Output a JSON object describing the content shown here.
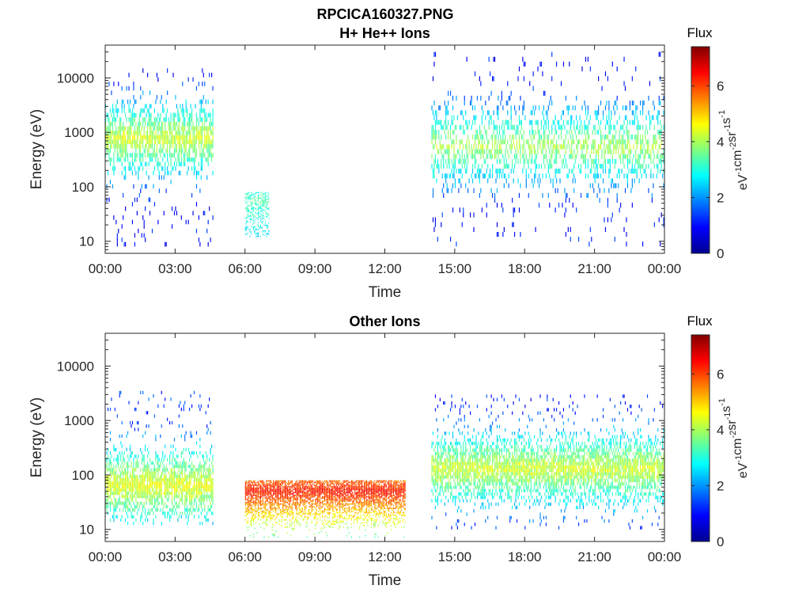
{
  "figure_title": "RPCICA160327.PNG",
  "colormap": "jet",
  "chart_data": [
    {
      "type": "heatmap",
      "title": "H+ He++ Ions",
      "xlabel": "Time",
      "ylabel": "Energy (eV)",
      "x_ticks": [
        "00:00",
        "03:00",
        "06:00",
        "09:00",
        "12:00",
        "15:00",
        "18:00",
        "21:00",
        "00:00"
      ],
      "xlim_hours": [
        0,
        24
      ],
      "y_scale": "log",
      "ylim": [
        6,
        40000
      ],
      "y_ticks": [
        10,
        100,
        1000,
        10000
      ],
      "y_tick_labels": [
        "10",
        "100",
        "1000",
        "10000"
      ],
      "colorbar": {
        "title": "Flux",
        "label": "eV-1cm-2sr-1s-1",
        "range": [
          0,
          7.4
        ],
        "ticks": [
          "0",
          "2",
          "4",
          "6"
        ]
      },
      "data_regions": [
        {
          "t_start": 0.0,
          "t_end": 4.6,
          "e_low": 8,
          "e_high": 15000,
          "flux_low": 1.5,
          "flux_high": 4.8,
          "peak_energy": 700
        },
        {
          "t_start": 6.0,
          "t_end": 7.0,
          "e_low": 12,
          "e_high": 80,
          "flux_low": 2.4,
          "flux_high": 3.8,
          "peak_energy": 50
        },
        {
          "t_start": 14.0,
          "t_end": 24.0,
          "e_low": 8,
          "e_high": 30000,
          "flux_low": 1.5,
          "flux_high": 4.5,
          "peak_energy": 500
        }
      ]
    },
    {
      "type": "heatmap",
      "title": "Other Ions",
      "xlabel": "Time",
      "ylabel": "Energy (eV)",
      "x_ticks": [
        "00:00",
        "03:00",
        "06:00",
        "09:00",
        "12:00",
        "15:00",
        "18:00",
        "21:00",
        "00:00"
      ],
      "xlim_hours": [
        0,
        24
      ],
      "y_scale": "log",
      "ylim": [
        6,
        40000
      ],
      "y_ticks": [
        10,
        100,
        1000,
        10000
      ],
      "y_tick_labels": [
        "10",
        "100",
        "1000",
        "10000"
      ],
      "colorbar": {
        "title": "Flux",
        "label": "eV-1cm-2sr-1s-1",
        "range": [
          0,
          7.4
        ],
        "ticks": [
          "0",
          "2",
          "4",
          "6"
        ]
      },
      "data_regions": [
        {
          "t_start": 0.0,
          "t_end": 4.6,
          "e_low": 12,
          "e_high": 3500,
          "flux_low": 1.8,
          "flux_high": 5.0,
          "peak_energy": 60
        },
        {
          "t_start": 6.0,
          "t_end": 12.9,
          "e_low": 7,
          "e_high": 80,
          "flux_low": 3.0,
          "flux_high": 6.8,
          "peak_energy": 50
        },
        {
          "t_start": 14.0,
          "t_end": 24.0,
          "e_low": 10,
          "e_high": 3000,
          "flux_low": 1.6,
          "flux_high": 4.8,
          "peak_energy": 120
        }
      ]
    }
  ]
}
